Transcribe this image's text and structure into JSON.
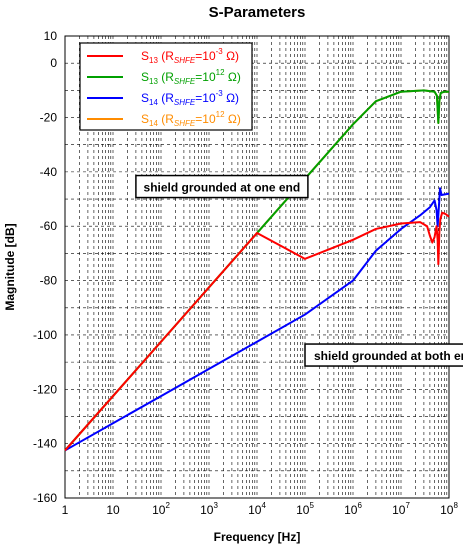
{
  "chart_data": {
    "type": "line",
    "title": "S-Parameters",
    "xlabel": "Frequency [Hz]",
    "ylabel": "Magnitude [dB]",
    "x_scale": "log",
    "xlim": [
      1,
      100000000
    ],
    "ylim": [
      -160,
      10
    ],
    "grid": true,
    "legend_placement": "top-left",
    "x_ticks": [
      {
        "value": 1,
        "base": "1",
        "exp": ""
      },
      {
        "value": 10,
        "base": "10",
        "exp": ""
      },
      {
        "value": 100,
        "base": "10",
        "exp": "2"
      },
      {
        "value": 1000,
        "base": "10",
        "exp": "3"
      },
      {
        "value": 10000,
        "base": "10",
        "exp": "4"
      },
      {
        "value": 100000,
        "base": "10",
        "exp": "5"
      },
      {
        "value": 1000000,
        "base": "10",
        "exp": "6"
      },
      {
        "value": 10000000,
        "base": "10",
        "exp": "7"
      },
      {
        "value": 100000000,
        "base": "10",
        "exp": "8"
      }
    ],
    "y_ticks": [
      10,
      0,
      -20,
      -40,
      -60,
      -80,
      -100,
      -120,
      -140,
      -160
    ],
    "series": [
      {
        "name": "S13 (RSHFE=10^-3 Ω)",
        "legend": {
          "base": "S",
          "sub": "13",
          "mid": " (R",
          "rsub": "SHFE",
          "eq": "=10",
          "sup": "-3",
          "tail": " Ω)"
        },
        "color": "#ff0000",
        "points": [
          [
            1,
            -142.5
          ],
          [
            10,
            -122.5
          ],
          [
            100,
            -102.5
          ],
          [
            1000,
            -82.5
          ],
          [
            10000,
            -62.5
          ],
          [
            100000,
            -72
          ],
          [
            1000000,
            -65
          ],
          [
            3000000,
            -61
          ],
          [
            10000000,
            -59
          ],
          [
            25000000,
            -58.5
          ],
          [
            35000000,
            -60
          ],
          [
            40000000,
            -63.5
          ],
          [
            45000000,
            -66
          ],
          [
            50000000,
            -64
          ],
          [
            55000000,
            -60
          ],
          [
            58000000,
            -65
          ],
          [
            60000000,
            -74
          ],
          [
            63000000,
            -62
          ],
          [
            66000000,
            -57.5
          ],
          [
            72000000,
            -55
          ],
          [
            85000000,
            -55.5
          ],
          [
            100000000,
            -56.5
          ]
        ]
      },
      {
        "name": "S13 (RSHFE=10^12 Ω)",
        "legend": {
          "base": "S",
          "sub": "13",
          "mid": " (R",
          "rsub": "SHFE",
          "eq": "=10",
          "sup": "12",
          "tail": " Ω)"
        },
        "color": "#00a000",
        "points": [
          [
            1,
            -142.5
          ],
          [
            10,
            -122.5
          ],
          [
            100,
            -102.5
          ],
          [
            1000,
            -82.5
          ],
          [
            10000,
            -62.5
          ],
          [
            100000,
            -42.5
          ],
          [
            1000000,
            -22.5
          ],
          [
            3000000,
            -14
          ],
          [
            10000000,
            -10.5
          ],
          [
            30000000,
            -10
          ],
          [
            50000000,
            -10.5
          ],
          [
            56000000,
            -12
          ],
          [
            60000000,
            -22
          ],
          [
            63000000,
            -14
          ],
          [
            67000000,
            -11
          ],
          [
            80000000,
            -10.5
          ],
          [
            100000000,
            -10.5
          ]
        ]
      },
      {
        "name": "S14 (RSHFE=10^-3 Ω)",
        "legend": {
          "base": "S",
          "sub": "14",
          "mid": " (R",
          "rsub": "SHFE",
          "eq": "=10",
          "sup": "-3",
          "tail": " Ω)"
        },
        "color": "#0000ff",
        "points": [
          [
            1,
            -142.5
          ],
          [
            10,
            -132.5
          ],
          [
            100,
            -122.5
          ],
          [
            1000,
            -112.5
          ],
          [
            10000,
            -102.5
          ],
          [
            100000,
            -92.5
          ],
          [
            1000000,
            -80
          ],
          [
            3000000,
            -69
          ],
          [
            10000000,
            -61
          ],
          [
            25000000,
            -56
          ],
          [
            40000000,
            -53
          ],
          [
            50000000,
            -50.5
          ],
          [
            55000000,
            -54
          ],
          [
            58000000,
            -60
          ],
          [
            62000000,
            -52
          ],
          [
            65000000,
            -46
          ],
          [
            70000000,
            -48.5
          ],
          [
            100000000,
            -48
          ]
        ]
      },
      {
        "name": "S14 (RSHFE=10^12 Ω)",
        "legend": {
          "base": "S",
          "sub": "14",
          "mid": " (R",
          "rsub": "SHFE",
          "eq": "=10",
          "sup": "12",
          "tail": " Ω)"
        },
        "color": "#ff8c00",
        "points": [
          [
            1,
            -142.5
          ],
          [
            10,
            -122.5
          ],
          [
            100,
            -102.5
          ],
          [
            1000,
            -82.5
          ],
          [
            10000,
            -62.5
          ],
          [
            100000,
            -42.5
          ],
          [
            1000000,
            -22.5
          ],
          [
            3000000,
            -14
          ],
          [
            10000000,
            -10.5
          ],
          [
            30000000,
            -10
          ],
          [
            50000000,
            -10.5
          ],
          [
            56000000,
            -12
          ],
          [
            60000000,
            -22
          ],
          [
            63000000,
            -14
          ],
          [
            67000000,
            -11
          ],
          [
            80000000,
            -10.5
          ],
          [
            100000000,
            -10.5
          ]
        ]
      }
    ],
    "annotations": [
      {
        "text": "shield grounded at one end",
        "x": 30,
        "y": -46.5
      },
      {
        "text": "shield grounded at both ends",
        "x": 100000,
        "y": -108.5
      }
    ]
  }
}
